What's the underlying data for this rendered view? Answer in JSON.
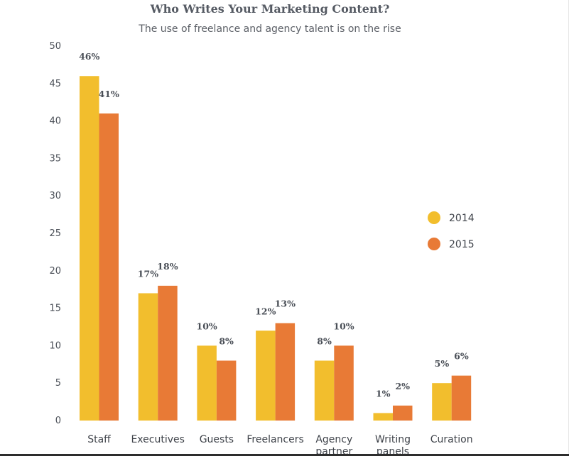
{
  "chart_data": {
    "type": "bar",
    "title": "Who Writes Your Marketing Content?",
    "subtitle": "The use of freelance and agency talent is on the rise",
    "categories": [
      "Staff",
      "Executives",
      "Guests",
      "Freelancers",
      "Agency partner",
      "Writing panels",
      "Curation"
    ],
    "series": [
      {
        "name": "2014",
        "color": "#F2BE2D",
        "values": [
          46,
          17,
          10,
          12,
          8,
          1,
          5
        ],
        "labels": [
          "46%",
          "17%",
          "10%",
          "12%",
          "8%",
          "1%",
          "5%"
        ]
      },
      {
        "name": "2015",
        "color": "#E87A36",
        "values": [
          41,
          18,
          8,
          13,
          10,
          2,
          6
        ],
        "labels": [
          "41%",
          "18%",
          "8%",
          "13%",
          "10%",
          "2%",
          "6%"
        ]
      }
    ],
    "ylim": [
      0,
      50
    ],
    "yticks": [
      0,
      5,
      10,
      15,
      20,
      25,
      30,
      35,
      40,
      45,
      50
    ],
    "xlabel": "",
    "ylabel": "",
    "grid": false,
    "legend_position": "right"
  }
}
